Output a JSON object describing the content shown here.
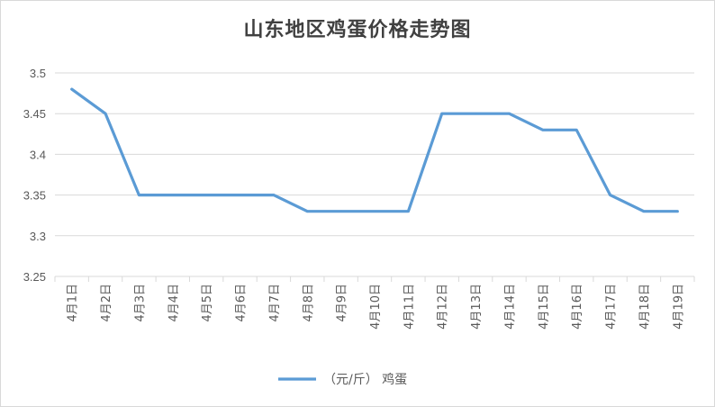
{
  "chart_data": {
    "type": "line",
    "title": "山东地区鸡蛋价格走势图",
    "categories": [
      "4月1日",
      "4月2日",
      "4月3日",
      "4月4日",
      "4月5日",
      "4月6日",
      "4月7日",
      "4月8日",
      "4月9日",
      "4月10日",
      "4月11日",
      "4月12日",
      "4月13日",
      "4月14日",
      "4月15日",
      "4月16日",
      "4月17日",
      "4月18日",
      "4月19日"
    ],
    "series": [
      {
        "name": "（元/斤） 鸡蛋",
        "values": [
          3.48,
          3.45,
          3.35,
          3.35,
          3.35,
          3.35,
          3.35,
          3.33,
          3.33,
          3.33,
          3.33,
          3.45,
          3.45,
          3.45,
          3.43,
          3.43,
          3.35,
          3.33,
          3.33
        ],
        "color": "#5b9bd5"
      }
    ],
    "ylim": [
      3.25,
      3.5
    ],
    "yticks": [
      "3.25",
      "3.3",
      "3.35",
      "3.4",
      "3.45",
      "3.5"
    ],
    "grid": true,
    "legend_position": "bottom"
  }
}
